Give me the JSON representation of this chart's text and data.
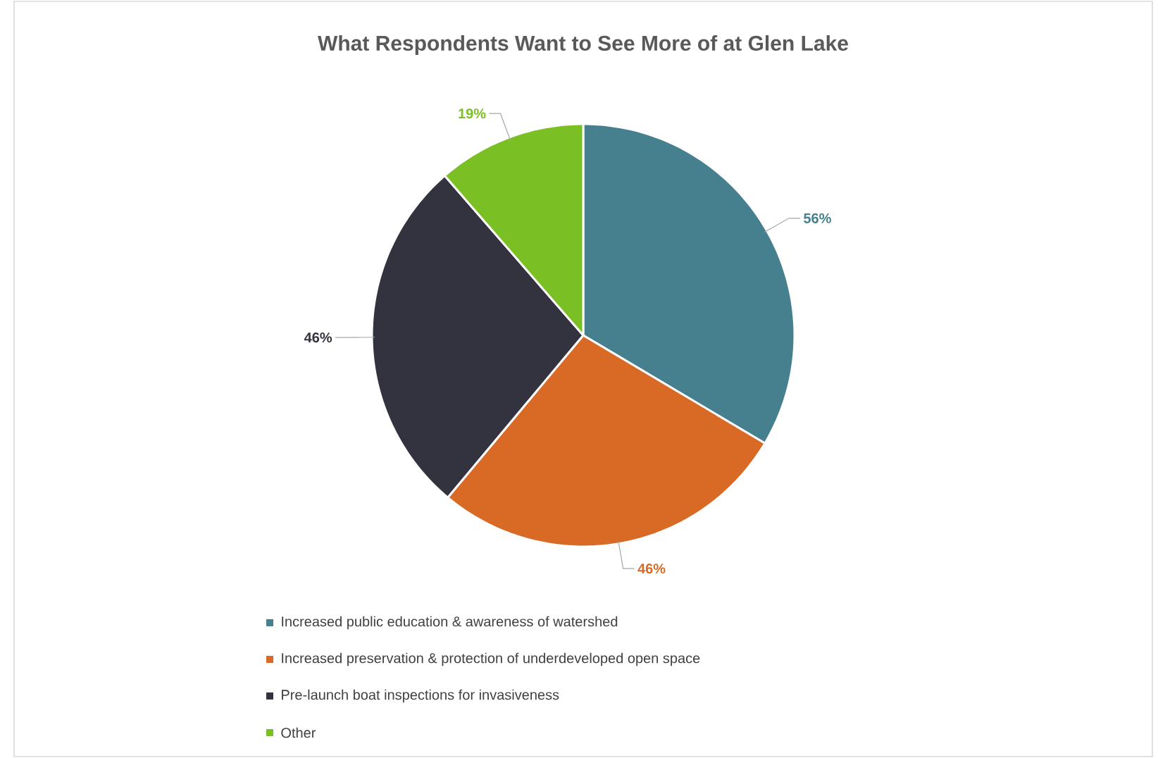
{
  "chart_data": {
    "type": "pie",
    "title": "What Respondents Want to See More of at Glen Lake",
    "categories": [
      "Increased public education & awareness of watershed",
      "Increased preservation & protection of underdeveloped open space",
      "Pre-launch boat inspections for invasiveness",
      "Other"
    ],
    "values": [
      56,
      46,
      46,
      19
    ],
    "value_labels": [
      "56%",
      "46%",
      "46%",
      "19%"
    ],
    "colors": [
      "#46808f",
      "#d96a26",
      "#33333f",
      "#7abf24"
    ],
    "legend": "bottom"
  }
}
